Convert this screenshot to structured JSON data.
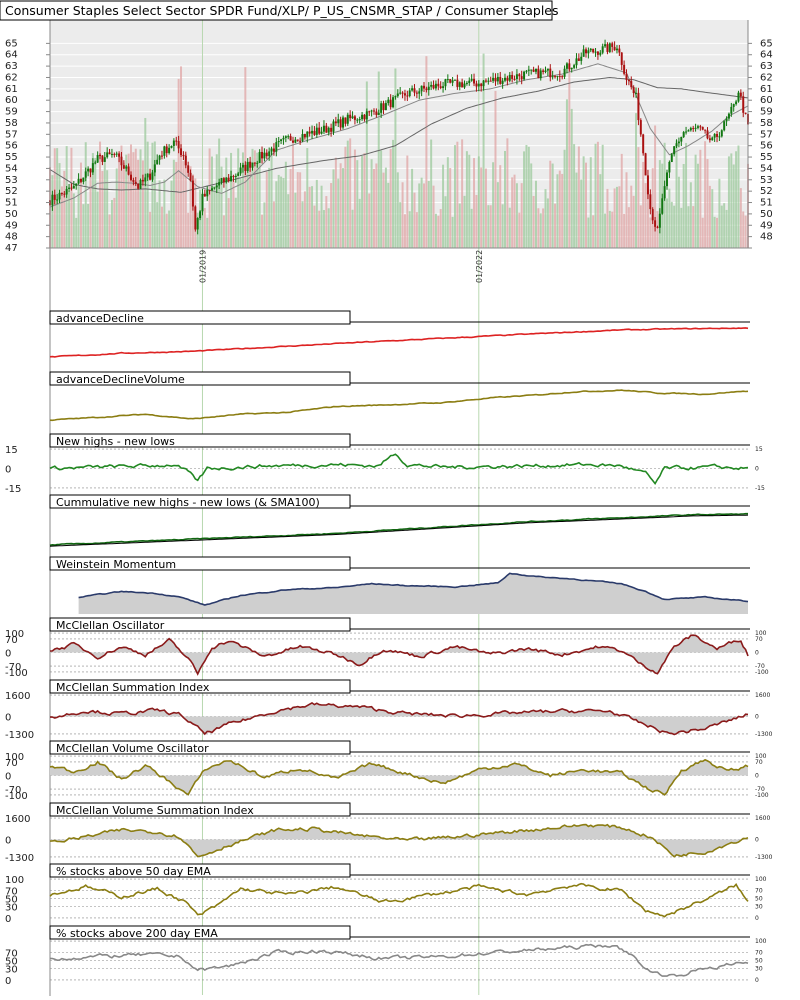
{
  "chart_data": {
    "type": "line",
    "title": "Consumer Staples Select Sector SPDR Fund/XLP/ P_US_CNSMR_STAP / Consumer Staples",
    "x_tick_labels": [
      "01/2019",
      "01/2022"
    ],
    "price_axis": {
      "ylim": [
        47,
        66
      ],
      "ticks": [
        47,
        48,
        49,
        50,
        51,
        52,
        53,
        54,
        55,
        56,
        57,
        58,
        59,
        60,
        61,
        62,
        63,
        64,
        65
      ]
    },
    "price_path": [
      [
        0,
        51.2
      ],
      [
        10,
        52.3
      ],
      [
        20,
        54.8
      ],
      [
        27,
        55.2
      ],
      [
        33,
        53.6
      ],
      [
        37,
        52.4
      ],
      [
        42,
        53.4
      ],
      [
        46,
        55.2
      ],
      [
        52,
        56.3
      ],
      [
        56,
        55.2
      ],
      [
        59,
        53.0
      ],
      [
        61,
        48.6
      ],
      [
        64,
        51.4
      ],
      [
        70,
        52.5
      ],
      [
        78,
        53.5
      ],
      [
        85,
        54.6
      ],
      [
        100,
        56.6
      ],
      [
        115,
        57.4
      ],
      [
        125,
        58.3
      ],
      [
        135,
        58.9
      ],
      [
        150,
        60.6
      ],
      [
        165,
        61.4
      ],
      [
        180,
        61.5
      ],
      [
        200,
        62.3
      ],
      [
        215,
        62.5
      ],
      [
        225,
        64.2
      ],
      [
        233,
        64.5
      ],
      [
        238,
        64.8
      ],
      [
        242,
        62.0
      ],
      [
        246,
        60.2
      ],
      [
        249,
        55.5
      ],
      [
        252,
        50.5
      ],
      [
        255,
        48.4
      ],
      [
        258,
        52.5
      ],
      [
        262,
        55.8
      ],
      [
        266,
        57.2
      ],
      [
        272,
        57.5
      ],
      [
        278,
        56.3
      ],
      [
        283,
        57.8
      ],
      [
        287,
        59.4
      ],
      [
        289,
        60.9
      ],
      [
        293,
        57.6
      ]
    ],
    "sma_fast_path": [
      [
        0,
        50.6
      ],
      [
        10,
        51.4
      ],
      [
        20,
        52.7
      ],
      [
        28,
        52.8
      ],
      [
        35,
        52.7
      ],
      [
        42,
        52.5
      ],
      [
        48,
        52.8
      ],
      [
        54,
        53.8
      ],
      [
        62,
        52.4
      ],
      [
        72,
        51.8
      ],
      [
        82,
        52.8
      ],
      [
        95,
        55.6
      ],
      [
        110,
        56.6
      ],
      [
        125,
        57.5
      ],
      [
        140,
        58.7
      ],
      [
        155,
        60.0
      ],
      [
        170,
        60.6
      ],
      [
        185,
        61.0
      ],
      [
        200,
        61.8
      ],
      [
        215,
        62.3
      ],
      [
        230,
        63.2
      ],
      [
        242,
        62.4
      ],
      [
        252,
        57.5
      ],
      [
        260,
        55.2
      ],
      [
        268,
        56.0
      ],
      [
        278,
        57.3
      ],
      [
        285,
        58.6
      ],
      [
        293,
        59.5
      ]
    ],
    "sma_slow_path": [
      [
        0,
        53.9
      ],
      [
        10,
        52.6
      ],
      [
        20,
        52.2
      ],
      [
        30,
        52.1
      ],
      [
        40,
        52.2
      ],
      [
        55,
        51.9
      ],
      [
        75,
        52.9
      ],
      [
        95,
        54.0
      ],
      [
        115,
        54.7
      ],
      [
        130,
        55.1
      ],
      [
        145,
        56.0
      ],
      [
        160,
        57.9
      ],
      [
        175,
        59.3
      ],
      [
        190,
        60.2
      ],
      [
        205,
        60.8
      ],
      [
        220,
        61.6
      ],
      [
        235,
        62.0
      ],
      [
        245,
        61.8
      ],
      [
        255,
        61.1
      ],
      [
        265,
        61.0
      ],
      [
        275,
        60.7
      ],
      [
        293,
        60.2
      ]
    ],
    "panels": [
      {
        "title": "advanceDecline",
        "color": "#dd2222",
        "fill": false,
        "path": [
          [
            0,
            0.2
          ],
          [
            30,
            0.3
          ],
          [
            60,
            0.35
          ],
          [
            90,
            0.45
          ],
          [
            130,
            0.58
          ],
          [
            170,
            0.7
          ],
          [
            210,
            0.82
          ],
          [
            240,
            0.9
          ],
          [
            265,
            0.93
          ],
          [
            293,
            0.95
          ]
        ]
      },
      {
        "title": "advanceDeclineVolume",
        "color": "#8b7d12",
        "fill": false,
        "path": [
          [
            0,
            0.15
          ],
          [
            20,
            0.22
          ],
          [
            40,
            0.3
          ],
          [
            60,
            0.18
          ],
          [
            80,
            0.3
          ],
          [
            100,
            0.35
          ],
          [
            120,
            0.5
          ],
          [
            145,
            0.55
          ],
          [
            165,
            0.6
          ],
          [
            185,
            0.72
          ],
          [
            205,
            0.8
          ],
          [
            220,
            0.88
          ],
          [
            240,
            0.92
          ],
          [
            255,
            0.85
          ],
          [
            275,
            0.82
          ],
          [
            293,
            0.9
          ]
        ]
      },
      {
        "title": "New highs - new lows",
        "color": "#228822",
        "fill": false,
        "range": [
          -15,
          15
        ],
        "left_ticks": [
          "15",
          "0",
          "-15"
        ],
        "right_ticks": [
          "15",
          "0",
          "-15"
        ],
        "path": [
          [
            0,
            0
          ],
          [
            20,
            1
          ],
          [
            40,
            2
          ],
          [
            52,
            3
          ],
          [
            58,
            -3
          ],
          [
            62,
            -10
          ],
          [
            66,
            0
          ],
          [
            90,
            2
          ],
          [
            120,
            3
          ],
          [
            138,
            2
          ],
          [
            145,
            12
          ],
          [
            150,
            3
          ],
          [
            165,
            1
          ],
          [
            200,
            2
          ],
          [
            225,
            3
          ],
          [
            240,
            2
          ],
          [
            250,
            -4
          ],
          [
            254,
            -12
          ],
          [
            258,
            0
          ],
          [
            280,
            1
          ],
          [
            293,
            0
          ]
        ]
      },
      {
        "title": "Cummulative new highs - new lows (& SMA100)",
        "color": "#116611",
        "fill": false,
        "path": [
          [
            0,
            0.1
          ],
          [
            40,
            0.2
          ],
          [
            80,
            0.3
          ],
          [
            120,
            0.4
          ],
          [
            160,
            0.55
          ],
          [
            200,
            0.7
          ],
          [
            240,
            0.8
          ],
          [
            270,
            0.88
          ],
          [
            293,
            0.9
          ]
        ]
      },
      {
        "title": "Weinstein Momentum",
        "color": "#2a3a6a",
        "fill": true,
        "path": [
          [
            12,
            0.35
          ],
          [
            30,
            0.5
          ],
          [
            45,
            0.45
          ],
          [
            55,
            0.35
          ],
          [
            65,
            0.15
          ],
          [
            80,
            0.4
          ],
          [
            100,
            0.55
          ],
          [
            120,
            0.6
          ],
          [
            135,
            0.7
          ],
          [
            150,
            0.65
          ],
          [
            170,
            0.62
          ],
          [
            188,
            0.72
          ],
          [
            193,
            0.97
          ],
          [
            205,
            0.88
          ],
          [
            220,
            0.82
          ],
          [
            232,
            0.75
          ],
          [
            240,
            0.7
          ],
          [
            250,
            0.5
          ],
          [
            258,
            0.3
          ],
          [
            275,
            0.35
          ],
          [
            293,
            0.25
          ]
        ]
      },
      {
        "title": "McClellan Oscillator",
        "color": "#8a1a1a",
        "fill": true,
        "range": [
          -100,
          100
        ],
        "left_ticks": [
          "100",
          "70",
          "0",
          "-70",
          "-100"
        ],
        "right_ticks": [
          "100",
          "70",
          "0",
          "-70",
          "-100"
        ],
        "path": [
          [
            0,
            10
          ],
          [
            10,
            40
          ],
          [
            20,
            -20
          ],
          [
            30,
            30
          ],
          [
            40,
            -10
          ],
          [
            50,
            60
          ],
          [
            58,
            -30
          ],
          [
            62,
            -110
          ],
          [
            68,
            30
          ],
          [
            75,
            60
          ],
          [
            90,
            -20
          ],
          [
            105,
            30
          ],
          [
            120,
            -10
          ],
          [
            130,
            -60
          ],
          [
            140,
            20
          ],
          [
            155,
            -20
          ],
          [
            170,
            30
          ],
          [
            185,
            -10
          ],
          [
            200,
            20
          ],
          [
            215,
            -10
          ],
          [
            230,
            30
          ],
          [
            240,
            10
          ],
          [
            248,
            -60
          ],
          [
            255,
            -100
          ],
          [
            262,
            30
          ],
          [
            270,
            90
          ],
          [
            280,
            20
          ],
          [
            290,
            70
          ],
          [
            293,
            -10
          ]
        ]
      },
      {
        "title": "McClellan Summation Index",
        "color": "#8a1a1a",
        "fill": true,
        "range": [
          -1300,
          1600
        ],
        "left_ticks": [
          "1600",
          "0",
          "-1300"
        ],
        "right_ticks": [
          "1600",
          "0",
          "-1300"
        ],
        "path": [
          [
            0,
            -100
          ],
          [
            15,
            450
          ],
          [
            30,
            200
          ],
          [
            45,
            450
          ],
          [
            55,
            100
          ],
          [
            65,
            -1300
          ],
          [
            75,
            -600
          ],
          [
            95,
            450
          ],
          [
            110,
            900
          ],
          [
            130,
            700
          ],
          [
            150,
            200
          ],
          [
            170,
            50
          ],
          [
            200,
            300
          ],
          [
            215,
            400
          ],
          [
            235,
            400
          ],
          [
            248,
            -500
          ],
          [
            260,
            -1300
          ],
          [
            275,
            -900
          ],
          [
            293,
            150
          ]
        ]
      },
      {
        "title": "McClellan Volume Oscillator",
        "color": "#8b7d12",
        "fill": true,
        "range": [
          -100,
          100
        ],
        "left_ticks": [
          "100",
          "70",
          "0",
          "-70",
          "-100"
        ],
        "right_ticks": [
          "100",
          "70",
          "0",
          "-70",
          "-100"
        ],
        "path": [
          [
            0,
            50
          ],
          [
            10,
            20
          ],
          [
            20,
            70
          ],
          [
            30,
            -20
          ],
          [
            40,
            50
          ],
          [
            50,
            -30
          ],
          [
            58,
            -100
          ],
          [
            65,
            30
          ],
          [
            75,
            80
          ],
          [
            90,
            -10
          ],
          [
            105,
            40
          ],
          [
            120,
            -20
          ],
          [
            135,
            60
          ],
          [
            150,
            10
          ],
          [
            165,
            -40
          ],
          [
            180,
            30
          ],
          [
            195,
            60
          ],
          [
            210,
            0
          ],
          [
            225,
            30
          ],
          [
            240,
            10
          ],
          [
            250,
            -60
          ],
          [
            258,
            -100
          ],
          [
            265,
            30
          ],
          [
            275,
            80
          ],
          [
            285,
            20
          ],
          [
            293,
            50
          ]
        ]
      },
      {
        "title": "McClellan Volume Summation Index",
        "color": "#8b7d12",
        "fill": true,
        "range": [
          -1300,
          1600
        ],
        "left_ticks": [
          "1600",
          "0",
          "-1300"
        ],
        "right_ticks": [
          "1600",
          "0",
          "-1300"
        ],
        "path": [
          [
            0,
            -200
          ],
          [
            15,
            200
          ],
          [
            30,
            700
          ],
          [
            45,
            600
          ],
          [
            55,
            200
          ],
          [
            62,
            -1300
          ],
          [
            75,
            -400
          ],
          [
            95,
            700
          ],
          [
            110,
            800
          ],
          [
            130,
            300
          ],
          [
            150,
            -100
          ],
          [
            170,
            200
          ],
          [
            200,
            700
          ],
          [
            225,
            1100
          ],
          [
            240,
            900
          ],
          [
            252,
            200
          ],
          [
            262,
            -1200
          ],
          [
            275,
            -900
          ],
          [
            293,
            200
          ]
        ]
      },
      {
        "title": "% stocks above 50 day EMA",
        "color": "#8b7d12",
        "fill": false,
        "range": [
          0,
          100
        ],
        "left_ticks": [
          "100",
          "70",
          "50",
          "30",
          "0"
        ],
        "right_ticks": [
          "100",
          "70",
          "50",
          "30",
          "0"
        ],
        "path": [
          [
            0,
            60
          ],
          [
            15,
            80
          ],
          [
            30,
            55
          ],
          [
            45,
            75
          ],
          [
            57,
            40
          ],
          [
            62,
            5
          ],
          [
            70,
            30
          ],
          [
            80,
            75
          ],
          [
            100,
            60
          ],
          [
            120,
            80
          ],
          [
            140,
            40
          ],
          [
            160,
            60
          ],
          [
            180,
            80
          ],
          [
            200,
            60
          ],
          [
            220,
            85
          ],
          [
            240,
            70
          ],
          [
            250,
            20
          ],
          [
            258,
            5
          ],
          [
            268,
            30
          ],
          [
            280,
            60
          ],
          [
            288,
            85
          ],
          [
            293,
            40
          ]
        ]
      },
      {
        "title": "% stocks above 200 day EMA",
        "color": "#888888",
        "fill": false,
        "range": [
          0,
          100
        ],
        "left_ticks": [
          "70",
          "50",
          "30",
          "0"
        ],
        "right_ticks": [
          "100",
          "70",
          "50",
          "30",
          "0"
        ],
        "path": [
          [
            0,
            55
          ],
          [
            20,
            60
          ],
          [
            40,
            65
          ],
          [
            55,
            60
          ],
          [
            62,
            25
          ],
          [
            75,
            35
          ],
          [
            95,
            70
          ],
          [
            115,
            75
          ],
          [
            140,
            55
          ],
          [
            165,
            60
          ],
          [
            185,
            70
          ],
          [
            210,
            80
          ],
          [
            235,
            90
          ],
          [
            243,
            70
          ],
          [
            252,
            20
          ],
          [
            262,
            10
          ],
          [
            275,
            30
          ],
          [
            293,
            45
          ]
        ]
      }
    ]
  }
}
